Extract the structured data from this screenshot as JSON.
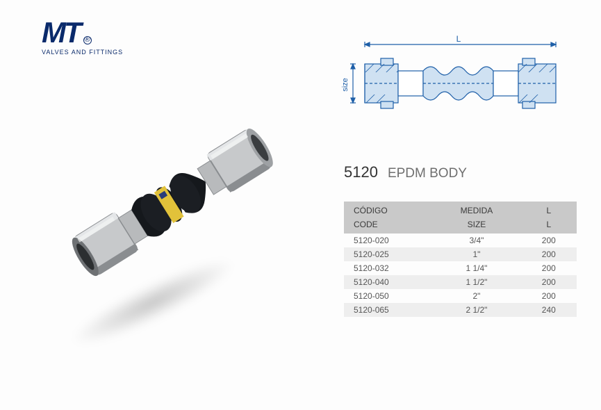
{
  "brand": {
    "logo_color": "#0a2a6b",
    "logo_r": "®",
    "tagline": "VALVES AND FITTINGS"
  },
  "drawing": {
    "stroke": "#1e5fa8",
    "fill_light": "#cfe1f2",
    "dim_L": "L",
    "dim_size": "size"
  },
  "title": {
    "code": "5120",
    "name": "EPDM BODY",
    "code_color": "#333333",
    "name_color": "#6f6f6f"
  },
  "table": {
    "header_bg": "#c9c9c9",
    "header_fg": "#3a3a3a",
    "row_alt_bg": "#eeeeee",
    "row_fg": "#555555",
    "columns_es": [
      "CÓDIGO",
      "MEDIDA",
      "L"
    ],
    "columns_en": [
      "CODE",
      "SIZE",
      "L"
    ],
    "rows": [
      {
        "code": "5120-020",
        "size": "3/4\"",
        "L": "200"
      },
      {
        "code": "5120-025",
        "size": "1\"",
        "L": "200"
      },
      {
        "code": "5120-032",
        "size": "1 1/4\"",
        "L": "200"
      },
      {
        "code": "5120-040",
        "size": "1 1/2\"",
        "L": "200"
      },
      {
        "code": "5120-050",
        "size": "2\"",
        "L": "200"
      },
      {
        "code": "5120-065",
        "size": "2 1/2\"",
        "L": "240"
      }
    ]
  },
  "photo": {
    "metal": "#c7c9cb",
    "metal_dark": "#8a8d90",
    "rubber": "#15181c",
    "band": "#e2c23a",
    "brand_band": "#293c7a"
  }
}
